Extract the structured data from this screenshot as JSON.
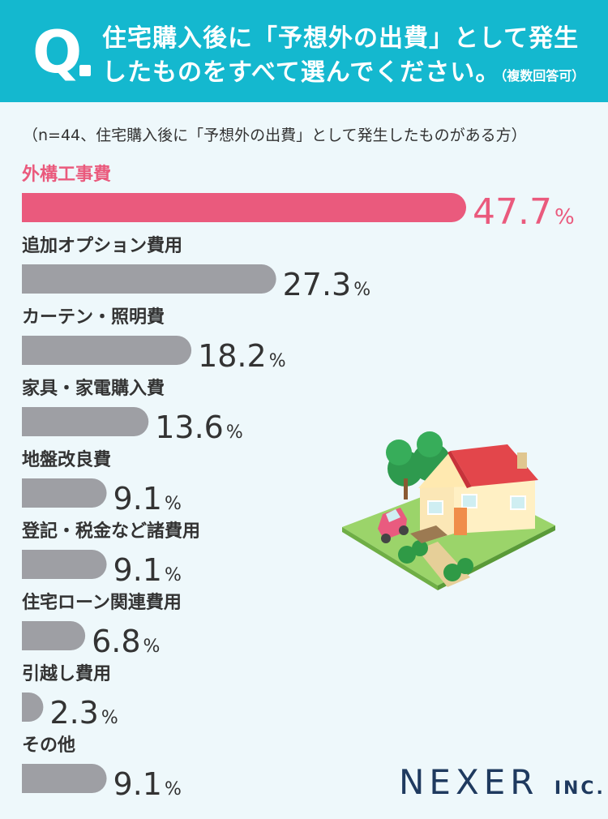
{
  "header": {
    "q_mark": "Q",
    "line1": "住宅購入後に「予想外の出費」として発生",
    "line2": "したものをすべて選んでください。",
    "line2_small": "（複数回答可）"
  },
  "note": "（n=44、住宅購入後に「予想外の出費」として発生したものがある方）",
  "logo": {
    "main": "NEXER",
    "suffix": "INC."
  },
  "colors": {
    "header_bg": "#14b8cf",
    "highlight": "#ea5a7d",
    "bar": "#9e9fa4",
    "text": "#333333",
    "background": "#eef8fb"
  },
  "chart_data": {
    "type": "bar",
    "orientation": "horizontal",
    "categories": [
      "外構工事費",
      "追加オプション費用",
      "カーテン・照明費",
      "家具・家電購入費",
      "地盤改良費",
      "登記・税金など諸費用",
      "住宅ローン関連費用",
      "引越し費用",
      "その他"
    ],
    "values": [
      47.7,
      27.3,
      18.2,
      13.6,
      9.1,
      9.1,
      6.8,
      2.3,
      9.1
    ],
    "unit": "%",
    "highlight_index": 0
  }
}
